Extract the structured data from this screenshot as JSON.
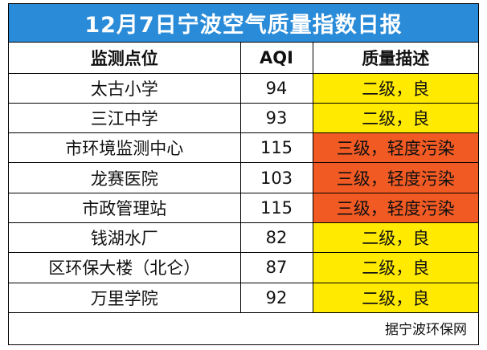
{
  "title": "12月7日宁波空气质量指数日报",
  "columns": {
    "station": "监测点位",
    "aqi": "AQI",
    "quality": "质量描述"
  },
  "colors": {
    "title_background": "#2a8bd8",
    "good": "#ffea00",
    "light_pollution": "#f25a24"
  },
  "rows": [
    {
      "station": "太古小学",
      "aqi": "94",
      "quality": "二级，良",
      "level": "good"
    },
    {
      "station": "三江中学",
      "aqi": "93",
      "quality": "二级，良",
      "level": "good"
    },
    {
      "station": "市环境监测中心",
      "aqi": "115",
      "quality": "三级，轻度污染",
      "level": "light"
    },
    {
      "station": "龙赛医院",
      "aqi": "103",
      "quality": "三级，轻度污染",
      "level": "light"
    },
    {
      "station": "市政管理站",
      "aqi": "115",
      "quality": "三级，轻度污染",
      "level": "light"
    },
    {
      "station": "钱湖水厂",
      "aqi": "82",
      "quality": "二级，良",
      "level": "good"
    },
    {
      "station": "区环保大楼（北仑）",
      "aqi": "87",
      "quality": "二级，良",
      "level": "good"
    },
    {
      "station": "万里学院",
      "aqi": "92",
      "quality": "二级，良",
      "level": "good"
    }
  ],
  "source": "据宁波环保网"
}
